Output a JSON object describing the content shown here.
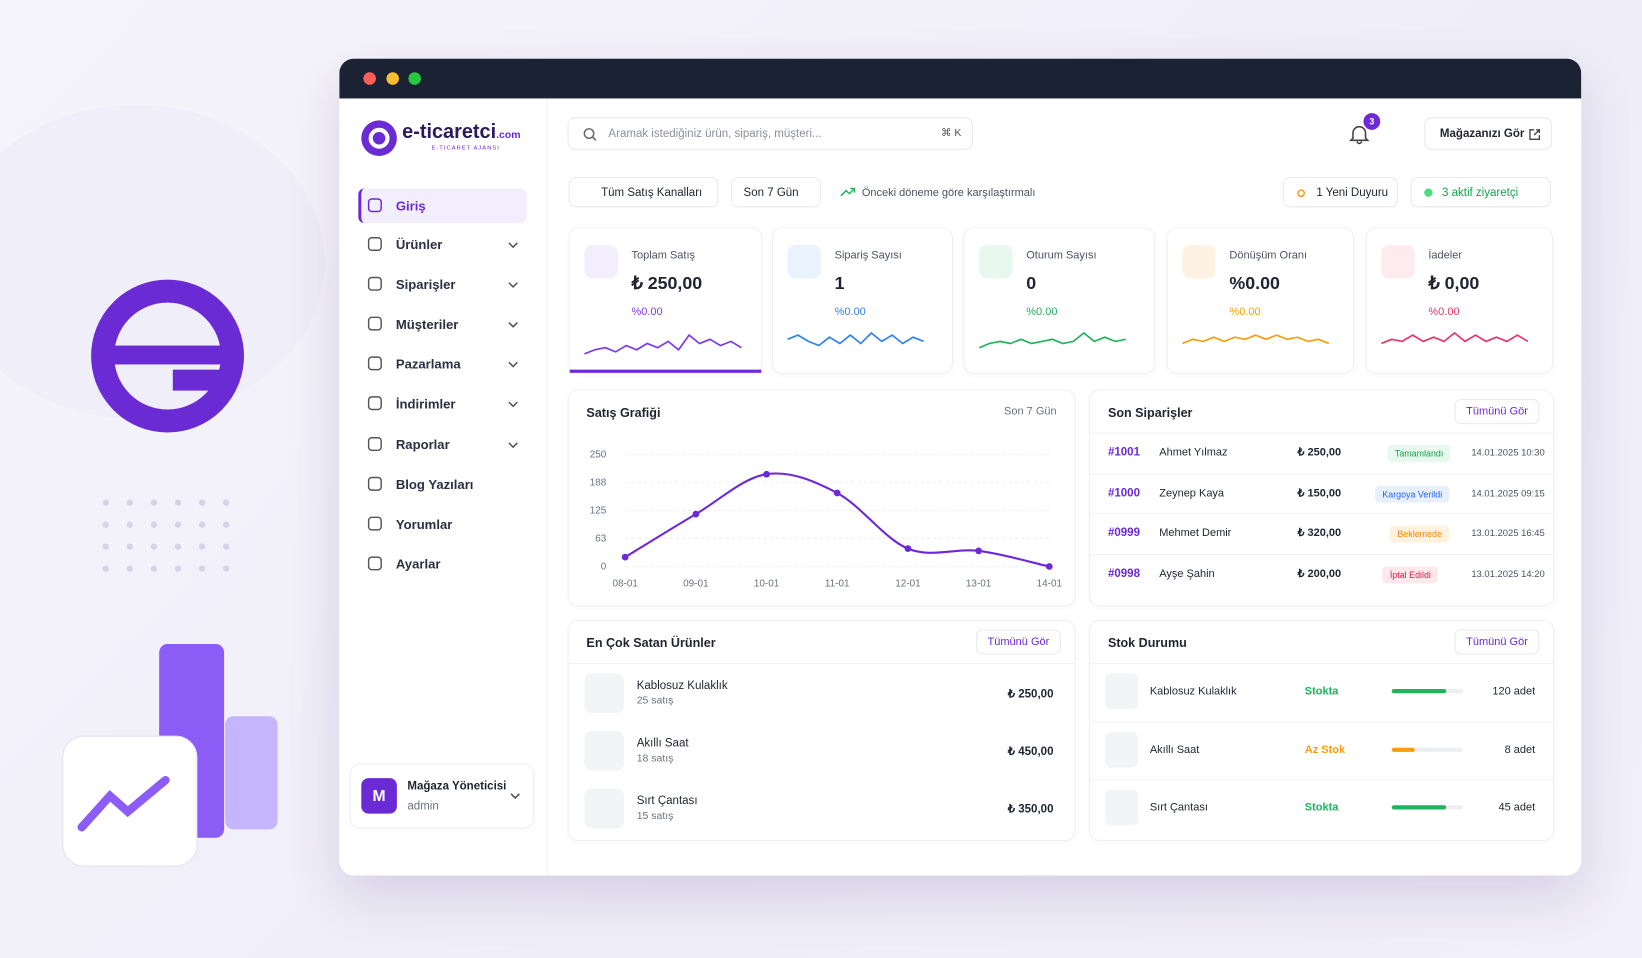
{
  "sidebar": {
    "logo": "e-ticaretci",
    "logo_suffix": ".com",
    "logo_tagline": "E-TICARET AJANSI",
    "nav": [
      "Giriş",
      "Ürünler",
      "Siparişler",
      "Müşteriler",
      "Pazarlama",
      "İndirimler",
      "Raporlar",
      "Blog Yazıları",
      "Yorumlar",
      "Ayarlar"
    ],
    "user": {
      "initial": "M",
      "name": "Mağaza Yöneticisi",
      "role": "admin"
    }
  },
  "header": {
    "search_placeholder": "Aramak istediğiniz ürün, sipariş, müşteri...",
    "shortcut": "⌘ K",
    "notifications": "3",
    "store_button": "Mağazanızı Gör"
  },
  "filters": {
    "channels": "Tüm Satış Kanalları",
    "period": "Son 7 Gün",
    "compare": "Önceki döneme göre karşılaştırmalı",
    "announcement": "1 Yeni Duyuru",
    "visitors": "3 aktif ziyaretçi"
  },
  "stats": [
    {
      "title": "Toplam Satış",
      "value": "₺ 250,00",
      "change": "%0.00"
    },
    {
      "title": "Sipariş Sayısı",
      "value": "1",
      "change": "%0.00"
    },
    {
      "title": "Oturum Sayısı",
      "value": "0",
      "change": "%0.00"
    },
    {
      "title": "Dönüşüm Oranı",
      "value": "%0.00",
      "change": "%0.00"
    },
    {
      "title": "İadeler",
      "value": "₺ 0,00",
      "change": "%0.00"
    }
  ],
  "chart_data": {
    "type": "line",
    "title": "Satış Grafiği",
    "subtitle": "Son 7 Gün",
    "categories": [
      "08-01",
      "09-01",
      "10-01",
      "11-01",
      "12-01",
      "13-01",
      "14-01"
    ],
    "values": [
      21,
      117,
      206,
      164,
      40,
      35,
      0
    ],
    "color": "#6d28d9",
    "ylim": [
      0,
      250
    ],
    "yticks": [
      0,
      63,
      125,
      188,
      250
    ],
    "grid": true
  },
  "orders": {
    "title": "Son Siparişler",
    "link": "Tümünü Gör",
    "rows": [
      [
        "#1001",
        "Ahmet Yılmaz",
        "₺ 250,00",
        "Tamamlandı",
        "14.01.2025 10:30"
      ],
      [
        "#1000",
        "Zeynep Kaya",
        "₺ 150,00",
        "Kargoya Verildi",
        "14.01.2025 09:15"
      ],
      [
        "#0999",
        "Mehmet Demir",
        "₺ 320,00",
        "Beklemede",
        "13.01.2025 16:45"
      ],
      [
        "#0998",
        "Ayşe Şahin",
        "₺ 200,00",
        "İptal Edildi",
        "13.01.2025 14:20"
      ]
    ]
  },
  "products": {
    "title": "En Çok Satan Ürünler",
    "link": "Tümünü Gör",
    "rows": [
      [
        "Kablosuz Kulaklık",
        "25 satış",
        "₺ 250,00"
      ],
      [
        "Akıllı Saat",
        "18 satış",
        "₺ 450,00"
      ],
      [
        "Sırt Çantası",
        "15 satış",
        "₺ 350,00"
      ]
    ]
  },
  "stock": {
    "title": "Stok Durumu",
    "link": "Tümünü Gör",
    "rows": [
      [
        "Kablosuz Kulaklık",
        "Stokta",
        "120 adet"
      ],
      [
        "Akıllı Saat",
        "Az Stok",
        "8 adet"
      ],
      [
        "Sırt Çantası",
        "Stokta",
        "45 adet"
      ]
    ]
  }
}
